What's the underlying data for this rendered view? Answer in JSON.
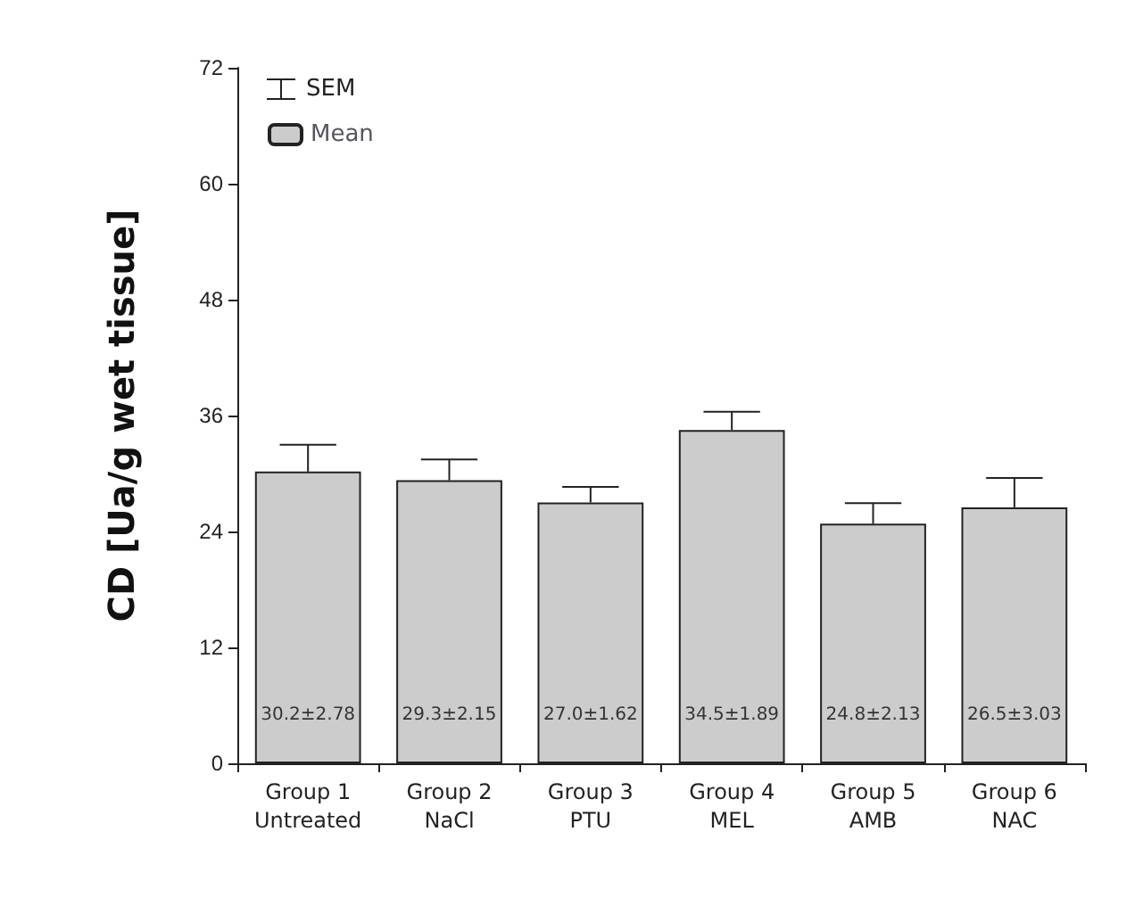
{
  "chart_data": {
    "type": "bar",
    "ylabel": "CD [Ua/g wet tissue]",
    "categories": [
      "Group 1\nUntreated",
      "Group 2\nNaCl",
      "Group 3\nPTU",
      "Group 4\nMEL",
      "Group 5\nAMB",
      "Group 6\nNAC"
    ],
    "series": [
      {
        "name": "Mean",
        "color": "#cccccc",
        "values": [
          30.2,
          29.3,
          27.0,
          34.5,
          24.8,
          26.5
        ],
        "errors": [
          2.78,
          2.15,
          1.62,
          1.89,
          2.13,
          3.03
        ],
        "value_labels": [
          "30.2±2.78",
          "29.3±2.15",
          "27.0±1.62",
          "34.5±1.89",
          "24.8±2.13",
          "26.5±3.03"
        ]
      }
    ],
    "annotations": [
      "SEM"
    ],
    "ylim": [
      0,
      72
    ],
    "yticks": [
      0,
      12,
      24,
      36,
      48,
      60,
      72
    ],
    "grid": false,
    "legend": "top left"
  }
}
